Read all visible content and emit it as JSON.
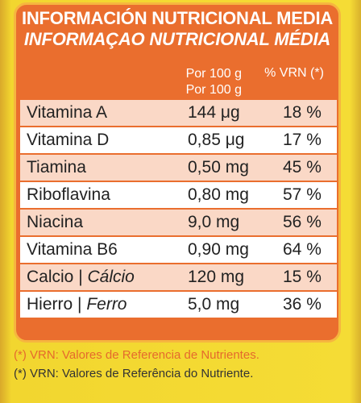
{
  "header": {
    "title_es": "INFORMACIÓN NUTRICIONAL MEDIA",
    "title_pt": "INFORMAÇAO NUTRICIONAL MÉDIA"
  },
  "columns": {
    "per100_line1": "Por 100 g",
    "per100_line2": "Por 100 g",
    "vrn": "% VRN (*)"
  },
  "rows": [
    {
      "name": "Vitamina A",
      "amount": "144 μg",
      "vrn": "18 %"
    },
    {
      "name": "Vitamina D",
      "amount": "0,85 μg",
      "vrn": "17 %"
    },
    {
      "name": "Tiamina",
      "amount": "0,50 mg",
      "vrn": "45 %"
    },
    {
      "name": "Riboflavina",
      "amount": "0,80 mg",
      "vrn": "57 %"
    },
    {
      "name": "Niacina",
      "amount": "9,0 mg",
      "vrn": "56 %"
    },
    {
      "name": "Vitamina B6",
      "amount": "0,90 mg",
      "vrn": "64 %"
    },
    {
      "name": "Calcio | ",
      "name_pt": "Cálcio",
      "amount": "120 mg",
      "vrn": "15 %"
    },
    {
      "name": "Hierro | ",
      "name_pt": "Ferro",
      "amount": "5,0 mg",
      "vrn": "36 %"
    }
  ],
  "footnotes": {
    "es": "(*) VRN: Valores de Referencia de Nutrientes.",
    "pt": "(*) VRN: Valores de Referência do Nutriente."
  },
  "colors": {
    "panel": "#ea6e2e",
    "row_alt": "#fad8c6",
    "row_white": "#ffffff",
    "background": "#f5dc35"
  }
}
